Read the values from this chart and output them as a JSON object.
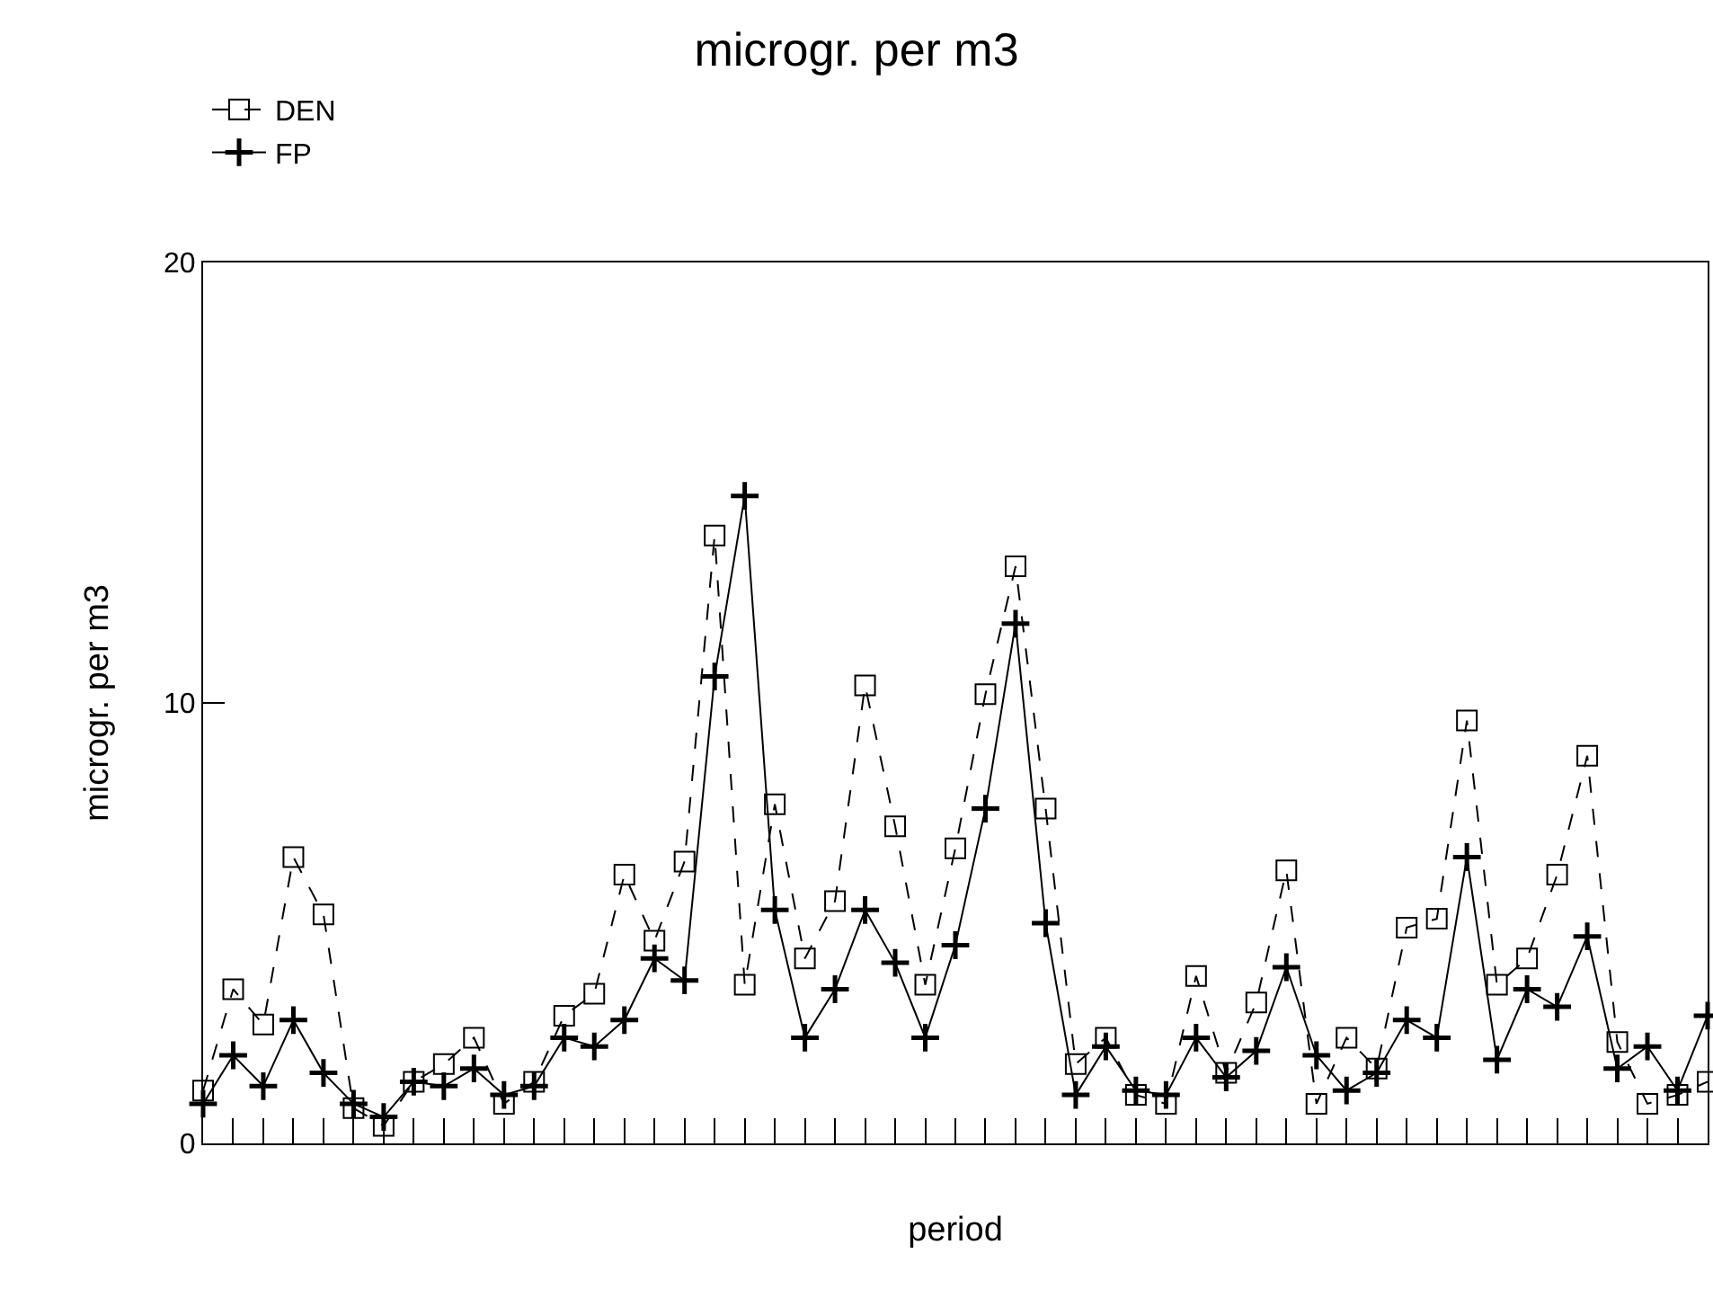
{
  "chart_data": {
    "type": "line",
    "title": "microgr. per m3",
    "xlabel": "period",
    "ylabel": "microgr. per m3",
    "categories": [
      null,
      null,
      null,
      null,
      null,
      null,
      null,
      null,
      null,
      null,
      null,
      null,
      null,
      null,
      null,
      null,
      null,
      null,
      null,
      null,
      null,
      null,
      null,
      null,
      null,
      null,
      null,
      null,
      null,
      null,
      null,
      null,
      null,
      null,
      null,
      null,
      null,
      null,
      null,
      null,
      null,
      null,
      null,
      null,
      null,
      null,
      null,
      null,
      null,
      null,
      null
    ],
    "series": [
      {
        "name": "DEN",
        "color": "#000000",
        "marker": "square",
        "line_style": "dashed",
        "values": [
          1.2,
          3.5,
          2.7,
          6.5,
          5.2,
          0.8,
          0.4,
          1.4,
          1.8,
          2.4,
          0.9,
          1.4,
          2.9,
          3.4,
          6.1,
          4.6,
          6.4,
          13.8,
          3.6,
          7.7,
          4.2,
          5.5,
          10.4,
          7.2,
          3.6,
          6.7,
          10.2,
          13.1,
          7.6,
          1.8,
          2.4,
          1.1,
          0.9,
          3.8,
          1.6,
          3.2,
          6.2,
          0.9,
          2.4,
          1.7,
          4.9,
          5.1,
          9.6,
          3.6,
          4.2,
          6.1,
          8.8,
          2.3,
          0.9,
          1.1,
          1.4
        ]
      },
      {
        "name": "FP",
        "color": "#000000",
        "marker": "cross",
        "line_style": "solid",
        "values": [
          0.9,
          2.0,
          1.3,
          2.8,
          1.6,
          0.9,
          0.6,
          1.4,
          1.3,
          1.7,
          1.1,
          1.3,
          2.4,
          2.2,
          2.8,
          4.2,
          3.7,
          10.6,
          14.7,
          5.3,
          2.4,
          3.5,
          5.3,
          4.1,
          2.4,
          4.5,
          7.6,
          11.8,
          5.0,
          1.1,
          2.2,
          1.2,
          1.1,
          2.4,
          1.5,
          2.1,
          4.0,
          2.0,
          1.2,
          1.6,
          2.8,
          2.4,
          6.5,
          1.9,
          3.5,
          3.1,
          4.7,
          1.7,
          2.2,
          1.2,
          2.9
        ]
      }
    ],
    "ylim": [
      0,
      20
    ],
    "yticks": [
      0,
      10,
      20
    ],
    "legend": "top",
    "tick_labels": "y"
  }
}
